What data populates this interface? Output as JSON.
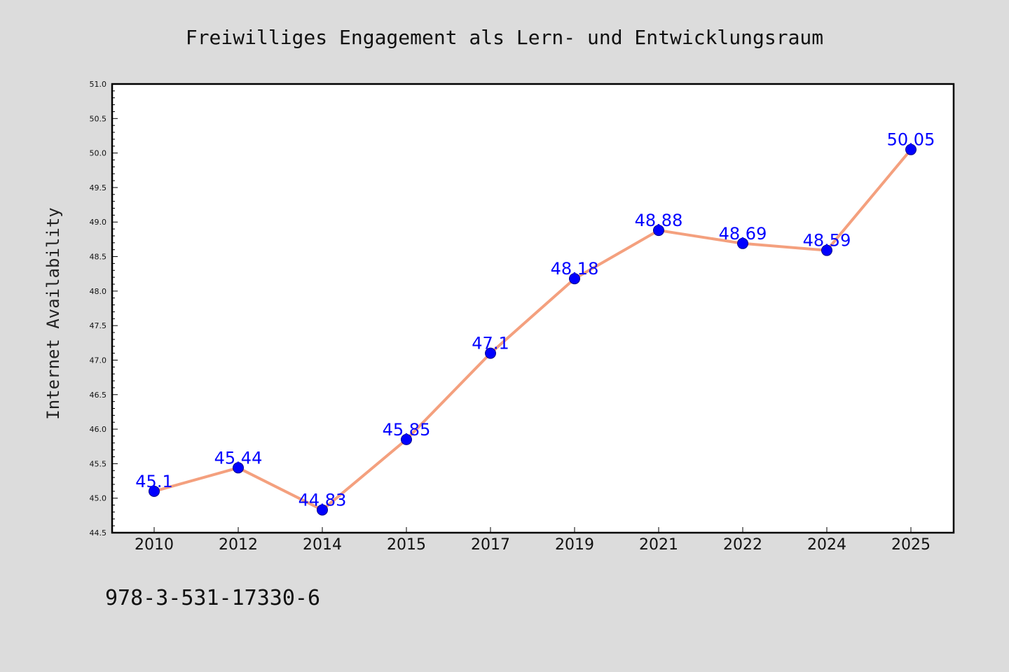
{
  "footer": {
    "isbn": "978-3-531-17330-6"
  },
  "chart_data": {
    "type": "line",
    "title": "Freiwilliges Engagement als Lern- und Entwicklungsraum",
    "ylabel": "Internet Availability",
    "xlabel": "",
    "categories": [
      "2010",
      "2012",
      "2014",
      "2015",
      "2017",
      "2019",
      "2021",
      "2022",
      "2024",
      "2025"
    ],
    "values": [
      45.1,
      45.44,
      44.83,
      45.85,
      47.1,
      48.18,
      48.88,
      48.69,
      48.59,
      50.05
    ],
    "data_labels": [
      "45.1",
      "45.44",
      "44.83",
      "45.85",
      "47.1",
      "48.18",
      "48.88",
      "48.69",
      "48.59",
      "50.05"
    ],
    "ylim": [
      44.5,
      51.0
    ],
    "yticks": [
      "44.5",
      "45.0",
      "45.5",
      "46.0",
      "46.5",
      "47.0",
      "47.5",
      "48.0",
      "48.5",
      "49.0",
      "49.5",
      "50.0",
      "50.5",
      "51.0"
    ],
    "grid": false,
    "legend": "none",
    "colors": {
      "line": "#f4a07e",
      "marker": "#0000ff",
      "marker_edge": "#00008b",
      "labels": "#0000ff",
      "background": "#dcdcdc",
      "plot_background": "#ffffff"
    }
  }
}
